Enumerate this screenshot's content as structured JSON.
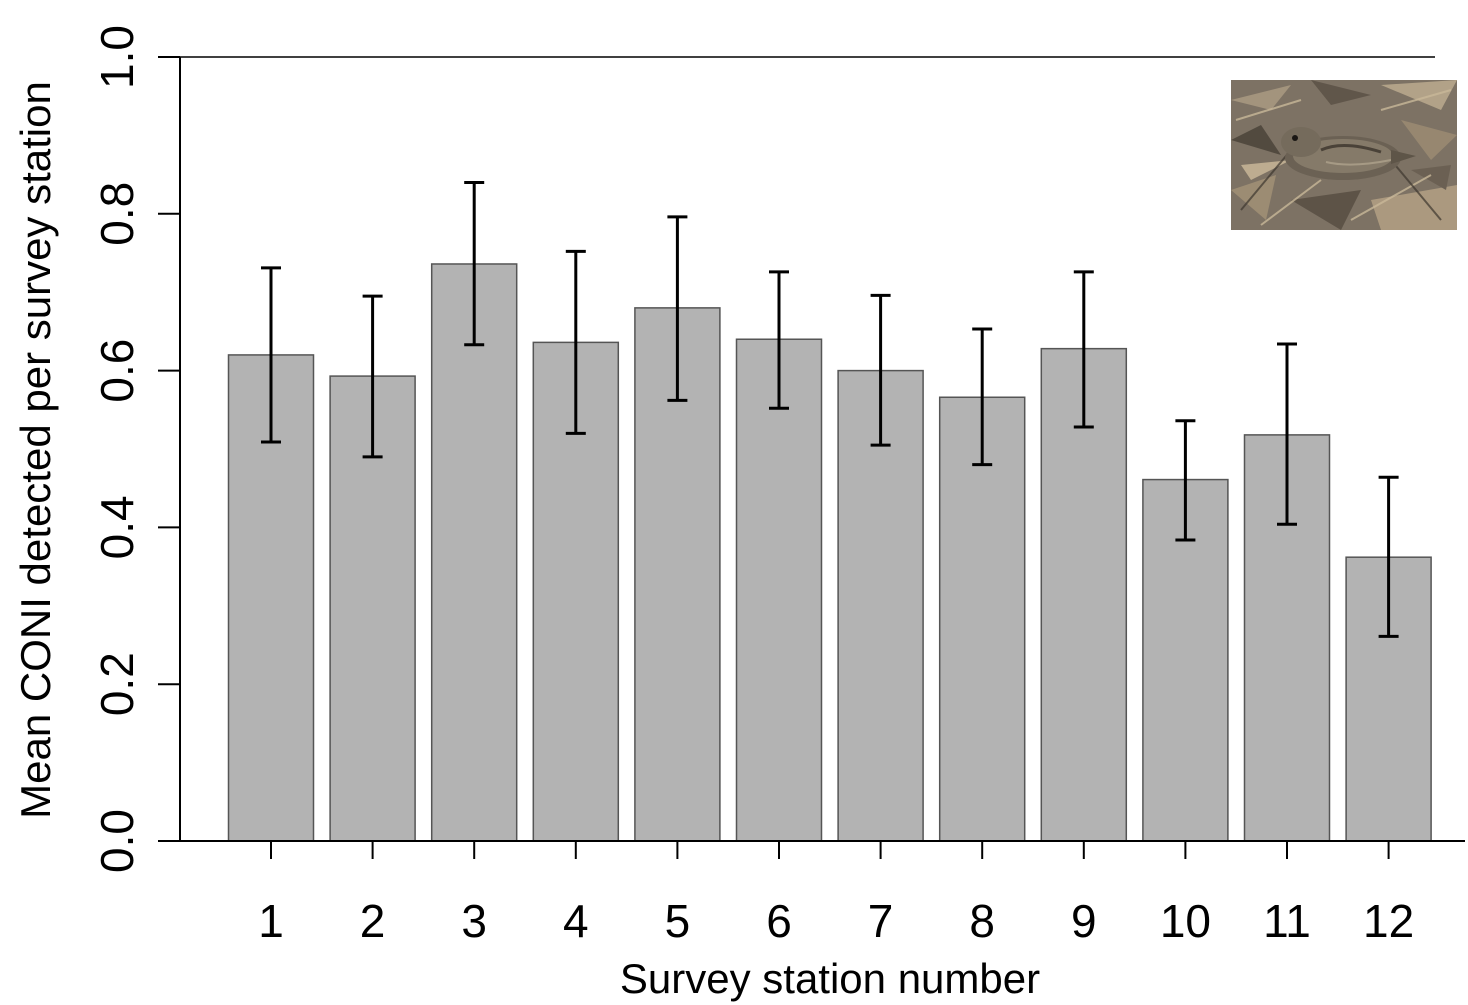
{
  "chart_data": {
    "type": "bar",
    "title": "",
    "xlabel": "Survey station number",
    "ylabel": "Mean CONI detected per survey station",
    "ylim": [
      0,
      1.0
    ],
    "yticks": [
      "0.0",
      "0.2",
      "0.4",
      "0.6",
      "0.8",
      "1.0"
    ],
    "grid": false,
    "categories": [
      "1",
      "2",
      "3",
      "4",
      "5",
      "6",
      "7",
      "8",
      "9",
      "10",
      "11",
      "12"
    ],
    "values": [
      0.62,
      0.593,
      0.736,
      0.636,
      0.68,
      0.64,
      0.6,
      0.566,
      0.628,
      0.461,
      0.518,
      0.362
    ],
    "error_low": [
      0.509,
      0.49,
      0.633,
      0.52,
      0.562,
      0.552,
      0.505,
      0.48,
      0.528,
      0.384,
      0.404,
      0.261
    ],
    "error_high": [
      0.731,
      0.695,
      0.84,
      0.752,
      0.796,
      0.726,
      0.696,
      0.653,
      0.726,
      0.536,
      0.634,
      0.464
    ],
    "bar_color": "#b3b3b3",
    "inset_image": "common-nighthawk-photo"
  }
}
